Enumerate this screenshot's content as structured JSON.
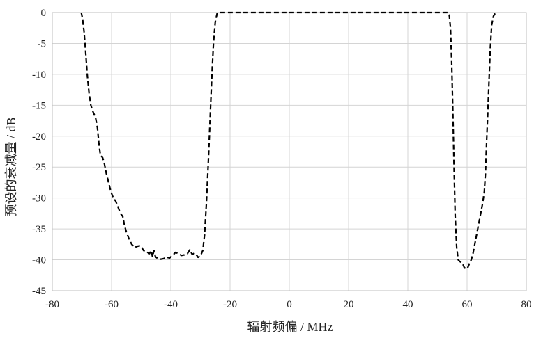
{
  "chart_data": {
    "type": "line",
    "xlabel": "辐射频偏 / MHz",
    "ylabel": "预设的衰减量 / dB",
    "xlim": [
      -80,
      80
    ],
    "ylim": [
      -45,
      0
    ],
    "x_ticks": [
      -80,
      -60,
      -40,
      -20,
      0,
      20,
      40,
      60,
      80
    ],
    "y_ticks": [
      0,
      -5,
      -10,
      -15,
      -20,
      -25,
      -30,
      -35,
      -40,
      -45
    ],
    "grid": true,
    "legend": "none",
    "series": [
      {
        "style": "dashed",
        "color": "#000000",
        "points": [
          [
            -70.2,
            0
          ],
          [
            -69.8,
            -1
          ],
          [
            -69.3,
            -3
          ],
          [
            -68.8,
            -6
          ],
          [
            -68.2,
            -10
          ],
          [
            -67.6,
            -13
          ],
          [
            -67.0,
            -15
          ],
          [
            -66.3,
            -16
          ],
          [
            -65.4,
            -17
          ],
          [
            -64.8,
            -18.5
          ],
          [
            -64.3,
            -21
          ],
          [
            -63.8,
            -23
          ],
          [
            -63.0,
            -23.5
          ],
          [
            -62.4,
            -24.5
          ],
          [
            -61.8,
            -26
          ],
          [
            -61.0,
            -27.5
          ],
          [
            -60.2,
            -29
          ],
          [
            -59.4,
            -30
          ],
          [
            -58.6,
            -30.5
          ],
          [
            -57.8,
            -31.5
          ],
          [
            -57.0,
            -32.5
          ],
          [
            -56.2,
            -33
          ],
          [
            -55.6,
            -34.5
          ],
          [
            -55.0,
            -35.5
          ],
          [
            -54.2,
            -36.5
          ],
          [
            -53.2,
            -37.5
          ],
          [
            -52.2,
            -38
          ],
          [
            -51.2,
            -37.8
          ],
          [
            -50.2,
            -37.7
          ],
          [
            -49.2,
            -38.5
          ],
          [
            -48.2,
            -38.7
          ],
          [
            -47.2,
            -39
          ],
          [
            -46.6,
            -38.5
          ],
          [
            -46.2,
            -39.5
          ],
          [
            -45.7,
            -38.5
          ],
          [
            -45.2,
            -39.5
          ],
          [
            -44.4,
            -39.8
          ],
          [
            -43.4,
            -39.9
          ],
          [
            -42.4,
            -39.8
          ],
          [
            -41.4,
            -39.6
          ],
          [
            -40.4,
            -39.7
          ],
          [
            -39.4,
            -39.3
          ],
          [
            -38.4,
            -38.8
          ],
          [
            -37.4,
            -39
          ],
          [
            -36.4,
            -39.3
          ],
          [
            -35.4,
            -39.2
          ],
          [
            -34.4,
            -39
          ],
          [
            -33.6,
            -38.4
          ],
          [
            -32.8,
            -39.1
          ],
          [
            -31.8,
            -38.9
          ],
          [
            -30.8,
            -39.6
          ],
          [
            -30.0,
            -39.4
          ],
          [
            -29.2,
            -38.5
          ],
          [
            -28.6,
            -36
          ],
          [
            -28.0,
            -31
          ],
          [
            -27.4,
            -25
          ],
          [
            -26.8,
            -18
          ],
          [
            -26.2,
            -11
          ],
          [
            -25.6,
            -5
          ],
          [
            -25.0,
            -1.5
          ],
          [
            -24.4,
            -0.2
          ],
          [
            -23.6,
            0
          ],
          [
            0,
            0
          ],
          [
            53.6,
            0
          ],
          [
            54.0,
            -0.5
          ],
          [
            54.4,
            -2.5
          ],
          [
            54.8,
            -8
          ],
          [
            55.2,
            -16
          ],
          [
            55.6,
            -25
          ],
          [
            56.0,
            -33
          ],
          [
            56.5,
            -38
          ],
          [
            57.0,
            -40
          ],
          [
            57.6,
            -40.3
          ],
          [
            58.4,
            -40.5
          ],
          [
            59.0,
            -41.2
          ],
          [
            59.6,
            -41.5
          ],
          [
            60.2,
            -41.3
          ],
          [
            60.8,
            -40.6
          ],
          [
            61.4,
            -40
          ],
          [
            62.0,
            -39
          ],
          [
            62.8,
            -37
          ],
          [
            63.6,
            -35
          ],
          [
            64.4,
            -33
          ],
          [
            65.2,
            -31
          ],
          [
            65.8,
            -29
          ],
          [
            66.2,
            -26
          ],
          [
            66.6,
            -21
          ],
          [
            67.0,
            -16
          ],
          [
            67.4,
            -11
          ],
          [
            67.8,
            -6
          ],
          [
            68.3,
            -2
          ],
          [
            68.9,
            -0.6
          ],
          [
            69.6,
            0
          ]
        ]
      }
    ]
  }
}
